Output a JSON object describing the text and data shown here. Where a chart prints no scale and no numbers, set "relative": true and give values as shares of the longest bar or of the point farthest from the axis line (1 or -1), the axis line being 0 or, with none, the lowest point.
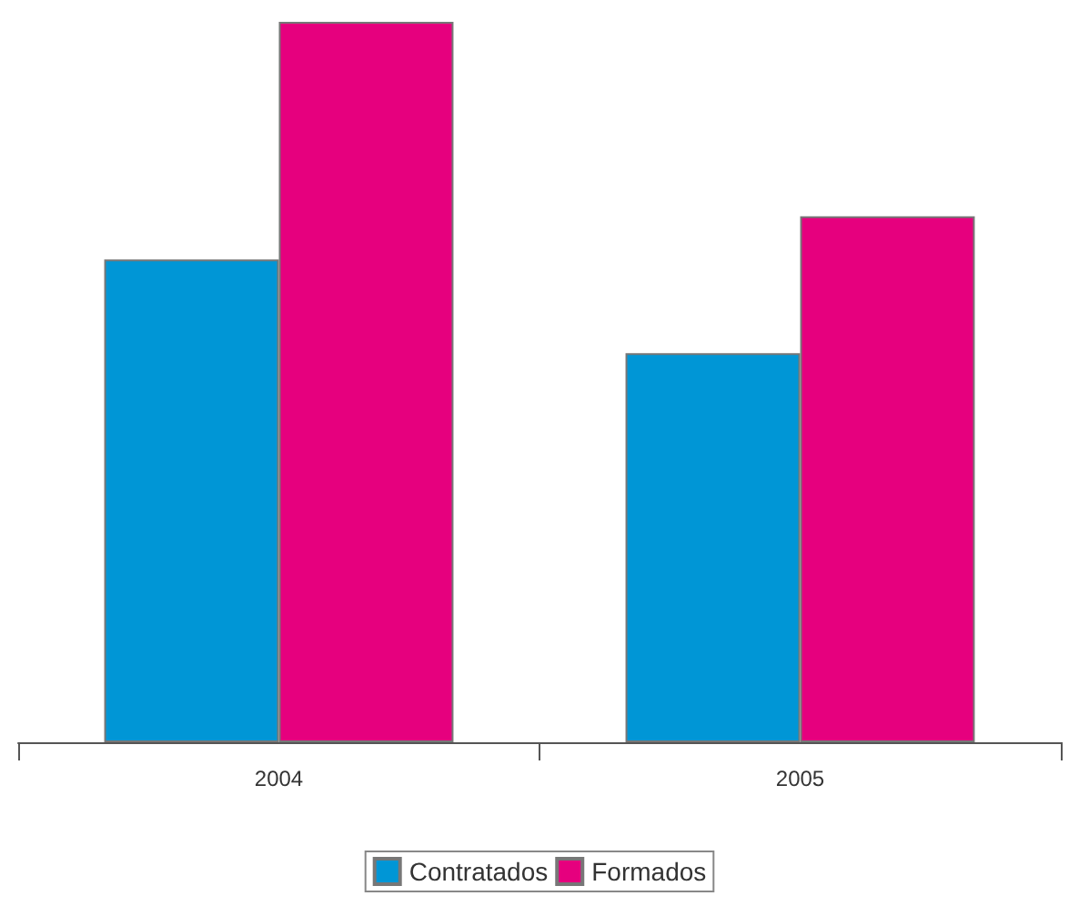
{
  "chart_data": {
    "type": "bar",
    "relative": true,
    "categories": [
      "2004",
      "2005"
    ],
    "series": [
      {
        "name": "Contratados",
        "color": "#0096d6",
        "values": [
          0.67,
          0.54
        ]
      },
      {
        "name": "Formados",
        "color": "#e6007e",
        "values": [
          1,
          0.73
        ]
      }
    ],
    "legend": "bottom"
  }
}
